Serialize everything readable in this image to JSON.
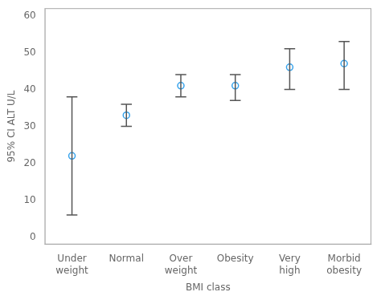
{
  "chart_data": {
    "type": "errorbar",
    "categories": [
      "Under\nweight",
      "Normal",
      "Over\nweight",
      "Obesity",
      "Very\nhigh",
      "Morbid\nobesity"
    ],
    "values": [
      22,
      33,
      41,
      41,
      46,
      47
    ],
    "lower_errors": [
      16,
      3,
      3,
      4,
      6,
      7
    ],
    "upper_errors": [
      16,
      3,
      3,
      3,
      5,
      6
    ],
    "xlabel": "BMI class",
    "ylabel": "95% CI ALT U/L",
    "ylim": [
      -2,
      62
    ],
    "yticks": [
      0,
      10,
      20,
      30,
      40,
      50,
      60
    ],
    "grid": false
  }
}
